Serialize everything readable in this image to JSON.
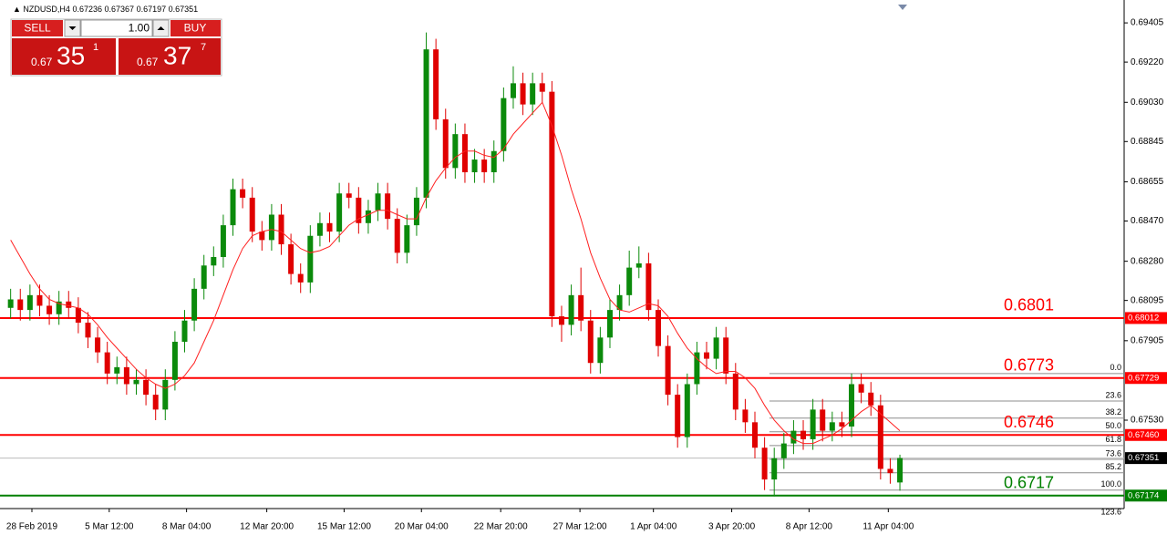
{
  "header": {
    "symbol": "NZDUSD,H4"
  },
  "trade_panel": {
    "sell_label": "SELL",
    "buy_label": "BUY",
    "lot": "1.00",
    "bid": {
      "prefix": "0.67",
      "big": "35",
      "small": "1"
    },
    "ask": {
      "prefix": "0.67",
      "big": "37",
      "small": "7"
    }
  },
  "chart_data": {
    "type": "candlestick",
    "up_color": "#0b8a0b",
    "down_color": "#e00000",
    "xlim": [
      -1.1,
      115.2
    ],
    "ylim": [
      0.66988,
      0.69513
    ],
    "xticks": [
      {
        "value": 2.2,
        "label": "28 Feb 2019"
      },
      {
        "value": 10.2,
        "label": "5 Mar 12:00"
      },
      {
        "value": 18.2,
        "label": "8 Mar 04:00"
      },
      {
        "value": 26.5,
        "label": "12 Mar 20:00"
      },
      {
        "value": 34.5,
        "label": "15 Mar 12:00"
      },
      {
        "value": 42.5,
        "label": "20 Mar 04:00"
      },
      {
        "value": 50.7,
        "label": "22 Mar 20:00"
      },
      {
        "value": 58.9,
        "label": "27 Mar 12:00"
      },
      {
        "value": 66.5,
        "label": "1 Apr 04:00"
      },
      {
        "value": 74.6,
        "label": "3 Apr 20:00"
      },
      {
        "value": 82.6,
        "label": "8 Apr 12:00"
      },
      {
        "value": 90.8,
        "label": "11 Apr 04:00"
      }
    ],
    "yticks": [
      0.69405,
      {
        "value": 0.6922,
        "label": "0.69220"
      },
      {
        "value": 0.6903,
        "label": "0.69030"
      },
      0.68845,
      0.68655,
      {
        "value": 0.6847,
        "label": "0.68470"
      },
      {
        "value": 0.6828,
        "label": "0.68280"
      },
      0.68095,
      0.67905,
      {
        "value": 0.6753,
        "label": "0.67530"
      }
    ],
    "open": [
      0.6806,
      0.681,
      0.6805,
      0.6812,
      0.6807,
      0.6803,
      0.6809,
      0.6806,
      0.6799,
      0.6792,
      0.6785,
      0.6775,
      0.6778,
      0.677,
      0.6772,
      0.6765,
      0.6758,
      0.6772,
      0.679,
      0.68,
      0.6815,
      0.6826,
      0.683,
      0.6845,
      0.6862,
      0.6858,
      0.6842,
      0.6838,
      0.685,
      0.6836,
      0.6822,
      0.6818,
      0.684,
      0.6846,
      0.6842,
      0.686,
      0.6858,
      0.6846,
      0.6852,
      0.686,
      0.6848,
      0.6832,
      0.6845,
      0.6858,
      0.6928,
      0.6895,
      0.6872,
      0.6888,
      0.687,
      0.6876,
      0.687,
      0.688,
      0.6905,
      0.6912,
      0.6902,
      0.6912,
      0.6908,
      0.6802,
      0.6798,
      0.6812,
      0.68,
      0.678,
      0.6792,
      0.6805,
      0.6812,
      0.6825,
      0.6827,
      0.6805,
      0.6788,
      0.6765,
      0.6745,
      0.677,
      0.6785,
      0.6782,
      0.6792,
      0.6775,
      0.6758,
      0.6752,
      0.674,
      0.6725,
      0.6735,
      0.6742,
      0.6748,
      0.6744,
      0.6758,
      0.6748,
      0.6752,
      0.675,
      0.677,
      0.6766,
      0.676,
      0.673,
      0.67236
    ],
    "high": [
      0.6815,
      0.6815,
      0.6817,
      0.6817,
      0.6812,
      0.6814,
      0.6814,
      0.6811,
      0.6804,
      0.6797,
      0.679,
      0.6783,
      0.6783,
      0.6777,
      0.6777,
      0.677,
      0.6777,
      0.6795,
      0.6805,
      0.682,
      0.6831,
      0.6835,
      0.685,
      0.6867,
      0.6867,
      0.6863,
      0.6847,
      0.6855,
      0.6855,
      0.6841,
      0.6827,
      0.6845,
      0.6851,
      0.6851,
      0.6865,
      0.6865,
      0.6863,
      0.6857,
      0.6865,
      0.6865,
      0.6853,
      0.685,
      0.6863,
      0.6936,
      0.6933,
      0.69,
      0.6893,
      0.6893,
      0.6881,
      0.6881,
      0.6885,
      0.691,
      0.692,
      0.6917,
      0.6917,
      0.6917,
      0.6913,
      0.6807,
      0.6817,
      0.6825,
      0.6805,
      0.6797,
      0.681,
      0.6817,
      0.6833,
      0.6835,
      0.6832,
      0.681,
      0.6793,
      0.677,
      0.6775,
      0.679,
      0.679,
      0.6797,
      0.6797,
      0.678,
      0.6763,
      0.6757,
      0.6745,
      0.674,
      0.6747,
      0.6753,
      0.6753,
      0.6763,
      0.6763,
      0.6757,
      0.6757,
      0.6775,
      0.6775,
      0.6771,
      0.6765,
      0.6735,
      0.67367
    ],
    "low": [
      0.6801,
      0.68,
      0.68,
      0.6802,
      0.6798,
      0.6798,
      0.6801,
      0.6794,
      0.6787,
      0.678,
      0.677,
      0.677,
      0.6765,
      0.6765,
      0.676,
      0.6753,
      0.6753,
      0.6767,
      0.6785,
      0.6795,
      0.681,
      0.6821,
      0.6825,
      0.684,
      0.6853,
      0.6837,
      0.6833,
      0.6833,
      0.6831,
      0.6817,
      0.6813,
      0.6813,
      0.6835,
      0.6837,
      0.6837,
      0.6853,
      0.6841,
      0.6841,
      0.6847,
      0.6843,
      0.6827,
      0.6827,
      0.684,
      0.6853,
      0.689,
      0.6867,
      0.6867,
      0.6865,
      0.6865,
      0.6865,
      0.6865,
      0.6875,
      0.69,
      0.6897,
      0.6897,
      0.6903,
      0.6797,
      0.679,
      0.6793,
      0.6795,
      0.6775,
      0.6775,
      0.6787,
      0.68,
      0.6807,
      0.682,
      0.68,
      0.6783,
      0.676,
      0.674,
      0.674,
      0.6765,
      0.6777,
      0.6777,
      0.677,
      0.6753,
      0.6747,
      0.6735,
      0.672,
      0.6717,
      0.673,
      0.6737,
      0.6739,
      0.6739,
      0.6743,
      0.6743,
      0.6745,
      0.6745,
      0.6761,
      0.6755,
      0.6725,
      0.6723,
      0.67197
    ],
    "close": [
      0.681,
      0.6805,
      0.6812,
      0.6807,
      0.6803,
      0.6809,
      0.6806,
      0.6799,
      0.6792,
      0.6785,
      0.6775,
      0.6778,
      0.677,
      0.6772,
      0.6765,
      0.6758,
      0.6772,
      0.679,
      0.68,
      0.6815,
      0.6826,
      0.683,
      0.6845,
      0.6862,
      0.6858,
      0.6842,
      0.6838,
      0.685,
      0.6836,
      0.6822,
      0.6818,
      0.684,
      0.6846,
      0.6842,
      0.686,
      0.6858,
      0.6846,
      0.6852,
      0.686,
      0.6848,
      0.6832,
      0.6845,
      0.6858,
      0.6928,
      0.6895,
      0.6872,
      0.6888,
      0.687,
      0.6876,
      0.687,
      0.688,
      0.6905,
      0.6912,
      0.6902,
      0.6912,
      0.6908,
      0.6802,
      0.6798,
      0.6812,
      0.68,
      0.678,
      0.6792,
      0.6805,
      0.6812,
      0.6825,
      0.6827,
      0.6805,
      0.6788,
      0.6765,
      0.6745,
      0.677,
      0.6785,
      0.6782,
      0.6792,
      0.6775,
      0.6758,
      0.6752,
      0.674,
      0.6725,
      0.6735,
      0.6742,
      0.6748,
      0.6744,
      0.6758,
      0.6748,
      0.6752,
      0.675,
      0.677,
      0.6766,
      0.676,
      0.673,
      0.6728,
      0.67351
    ],
    "ma": {
      "color": "#ff2020",
      "values": [
        0.6838,
        0.683,
        0.6822,
        0.6815,
        0.681,
        0.6808,
        0.6807,
        0.6806,
        0.6803,
        0.6798,
        0.6792,
        0.6787,
        0.6782,
        0.6777,
        0.6773,
        0.677,
        0.6768,
        0.677,
        0.6774,
        0.678,
        0.679,
        0.68,
        0.6812,
        0.6824,
        0.6834,
        0.684,
        0.6842,
        0.6843,
        0.6842,
        0.6838,
        0.6834,
        0.6832,
        0.6833,
        0.6835,
        0.684,
        0.6845,
        0.6848,
        0.685,
        0.6852,
        0.6852,
        0.685,
        0.6848,
        0.6848,
        0.6858,
        0.6866,
        0.6872,
        0.6877,
        0.688,
        0.688,
        0.6878,
        0.6877,
        0.6881,
        0.6888,
        0.6893,
        0.6898,
        0.6903,
        0.6892,
        0.6878,
        0.6862,
        0.6848,
        0.6832,
        0.682,
        0.681,
        0.6805,
        0.6804,
        0.6806,
        0.6808,
        0.6807,
        0.6802,
        0.6794,
        0.6787,
        0.6782,
        0.6778,
        0.6775,
        0.6776,
        0.6776,
        0.6773,
        0.6768,
        0.676,
        0.6753,
        0.6748,
        0.6744,
        0.6742,
        0.6742,
        0.6744,
        0.6746,
        0.6749,
        0.6753,
        0.6757,
        0.676,
        0.6756,
        0.6752,
        0.6748
      ]
    },
    "levels": [
      {
        "price": 0.68012,
        "label": "0.6801",
        "color": "#ff0000"
      },
      {
        "price": 0.67729,
        "label": "0.6773",
        "color": "#ff0000"
      },
      {
        "price": 0.6746,
        "tag_label": "0.67460",
        "label": "0.6746",
        "color": "#ff0000"
      },
      {
        "price": 0.67174,
        "label": "0.6717",
        "color": "#008000"
      }
    ],
    "price_line_color": "#000000",
    "fib": {
      "high": 0.6775,
      "low": 0.672,
      "start_x": 78.5,
      "color": "#8c8c8c",
      "levels": [
        {
          "value": 0,
          "label": "0.0"
        },
        23.6,
        38.2,
        {
          "value": 50,
          "label": "50.0"
        },
        61.8,
        73.6,
        85.2,
        {
          "value": 100,
          "label": "100.0"
        },
        123.6
      ]
    }
  }
}
